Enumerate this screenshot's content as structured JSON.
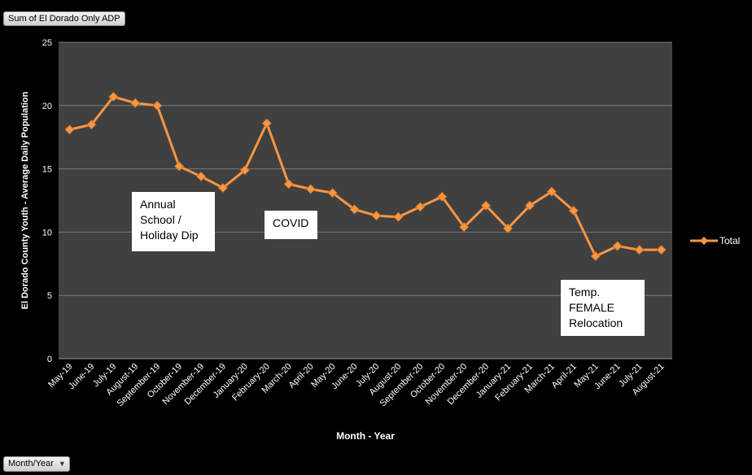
{
  "field_button_label": "Sum of El Dorado Only ADP",
  "filter_button_label": "Month/Year",
  "annotations": [
    {
      "id": "annual",
      "text": "Annual\nSchool /\nHoliday Dip"
    },
    {
      "id": "covid",
      "text": "COVID"
    },
    {
      "id": "female",
      "text": "Temp.\nFEMALE\nRelocation"
    }
  ],
  "colors": {
    "plot_background": "#404040",
    "series": "#f79646",
    "gridline": "#7a7a7a",
    "text": "#ffffff"
  },
  "chart_data": {
    "type": "line",
    "title": "",
    "xlabel": "Month - Year",
    "ylabel": "El Dorado County Youth - Average Daily Population",
    "ylim": [
      0,
      25
    ],
    "yticks": [
      0,
      5,
      10,
      15,
      20,
      25
    ],
    "grid": true,
    "legend_position": "right",
    "categories": [
      "May-19",
      "June-19",
      "July-19",
      "August-19",
      "September-19",
      "October-19",
      "November-19",
      "December-19",
      "January-20",
      "February-20",
      "March-20",
      "April-20",
      "May-20",
      "June-20",
      "July-20",
      "August-20",
      "September-20",
      "October-20",
      "November-20",
      "December-20",
      "January-21",
      "February-21",
      "March-21",
      "April-21",
      "May-21",
      "June-21",
      "July-21",
      "August-21"
    ],
    "series": [
      {
        "name": "Total",
        "values": [
          18.1,
          18.5,
          20.7,
          20.2,
          20.0,
          15.2,
          14.4,
          13.5,
          14.9,
          18.6,
          13.8,
          13.4,
          13.1,
          11.8,
          11.3,
          11.2,
          12.0,
          12.8,
          10.4,
          12.1,
          10.3,
          12.1,
          13.2,
          11.7,
          8.1,
          8.9,
          8.6,
          8.6
        ]
      }
    ]
  }
}
